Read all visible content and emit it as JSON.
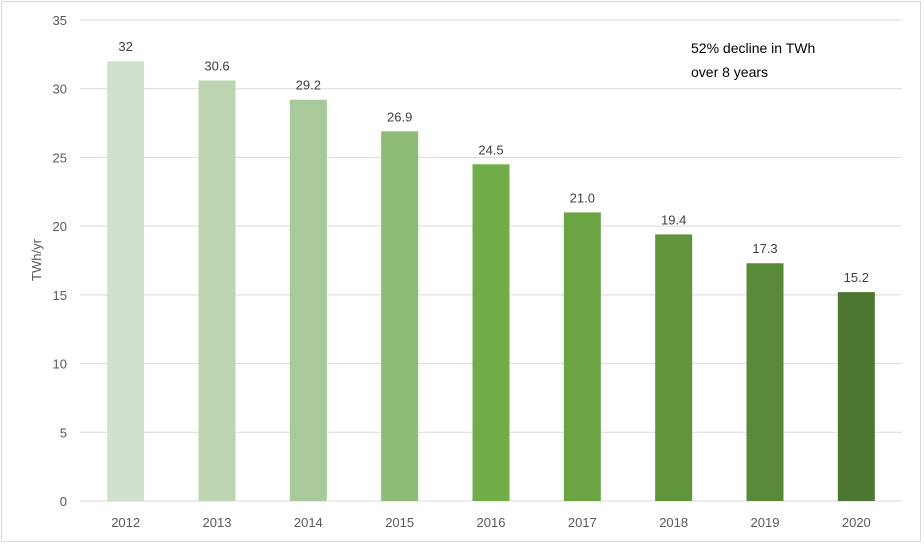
{
  "chart_data": {
    "type": "bar",
    "title": "",
    "xlabel": "",
    "ylabel": "TWh/yr",
    "ylim": [
      0,
      35
    ],
    "yticks": [
      0,
      5,
      10,
      15,
      20,
      25,
      30,
      35
    ],
    "grid": true,
    "categories": [
      "2012",
      "2013",
      "2014",
      "2015",
      "2016",
      "2017",
      "2018",
      "2019",
      "2020"
    ],
    "values": [
      32,
      30.6,
      29.2,
      26.9,
      24.5,
      21.0,
      19.4,
      17.3,
      15.2
    ],
    "data_labels": [
      "32",
      "30.6",
      "29.2",
      "26.9",
      "24.5",
      "21.0",
      "19.4",
      "17.3",
      "15.2"
    ],
    "colors": [
      "#d2e1cc",
      "#bdd5b1",
      "#a8c999",
      "#8fbb78",
      "#70ad47",
      "#6aa443",
      "#61953c",
      "#588a38",
      "#4d7731"
    ],
    "annotation": [
      "52% decline in TWh",
      "over 8 years"
    ]
  }
}
